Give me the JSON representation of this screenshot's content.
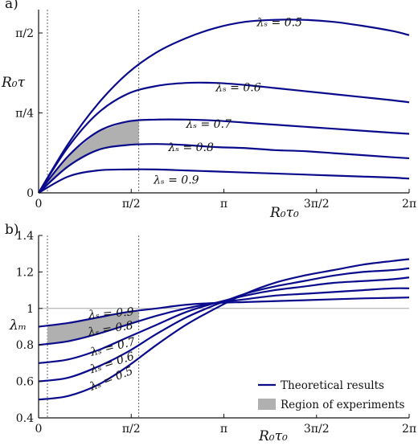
{
  "colors": {
    "curve": "#0a0a8c",
    "region": "#b0b0b0",
    "axis": "#111111",
    "reference": "#999999"
  },
  "chart_data": [
    {
      "panel_label": "a)",
      "type": "line",
      "ylabel": "R_0τ",
      "xlabel": "R_0τ_0",
      "x_ticks": [
        {
          "value": 0,
          "label": "0"
        },
        {
          "value": 1.5708,
          "label": "π/2"
        },
        {
          "value": 3.1416,
          "label": "π"
        },
        {
          "value": 4.7124,
          "label": "3π/2"
        },
        {
          "value": 6.2832,
          "label": "2π"
        }
      ],
      "y_ticks": [
        {
          "value": 0,
          "label": "0"
        },
        {
          "value": 0.7854,
          "label": "π/4"
        },
        {
          "value": 1.5708,
          "label": "π/2"
        }
      ],
      "xlim": [
        0,
        6.2832
      ],
      "ylim": [
        0,
        1.8
      ],
      "vertical_lines": [
        0.15,
        1.7
      ],
      "series": [
        {
          "name": "λs = 0.5",
          "x": [
            0,
            0.5,
            1.0,
            1.5,
            2.0,
            2.5,
            3.0,
            3.5,
            4.0,
            4.5,
            5.0,
            5.5,
            6.0,
            6.2832
          ],
          "y": [
            0,
            0.48,
            0.87,
            1.17,
            1.38,
            1.52,
            1.62,
            1.68,
            1.7,
            1.7,
            1.68,
            1.64,
            1.59,
            1.55
          ]
        },
        {
          "name": "λs = 0.6",
          "x": [
            0,
            0.5,
            1.0,
            1.5,
            2.0,
            2.5,
            3.0,
            3.5,
            4.0,
            4.5,
            5.0,
            5.5,
            6.0,
            6.2832
          ],
          "y": [
            0,
            0.45,
            0.78,
            0.97,
            1.05,
            1.08,
            1.08,
            1.06,
            1.03,
            1.0,
            0.97,
            0.94,
            0.91,
            0.89
          ]
        },
        {
          "name": "λs = 0.7",
          "x": [
            0,
            0.5,
            1.0,
            1.5,
            2.0,
            2.5,
            3.0,
            3.5,
            4.0,
            4.5,
            5.0,
            5.5,
            6.0,
            6.2832
          ],
          "y": [
            0,
            0.36,
            0.6,
            0.7,
            0.72,
            0.72,
            0.71,
            0.69,
            0.67,
            0.65,
            0.63,
            0.61,
            0.59,
            0.58
          ]
        },
        {
          "name": "λs = 0.8",
          "x": [
            0,
            0.5,
            1.0,
            1.5,
            2.0,
            2.5,
            3.0,
            3.5,
            4.0,
            4.5,
            5.0,
            5.5,
            6.0,
            6.2832
          ],
          "y": [
            0,
            0.26,
            0.42,
            0.47,
            0.48,
            0.47,
            0.45,
            0.44,
            0.42,
            0.41,
            0.39,
            0.37,
            0.35,
            0.34
          ]
        },
        {
          "name": "λs = 0.9",
          "x": [
            0,
            0.5,
            1.0,
            1.5,
            2.0,
            2.5,
            3.0,
            3.5,
            4.0,
            4.5,
            5.0,
            5.5,
            6.0,
            6.2832
          ],
          "y": [
            0,
            0.16,
            0.22,
            0.23,
            0.23,
            0.22,
            0.21,
            0.2,
            0.19,
            0.18,
            0.17,
            0.16,
            0.15,
            0.14
          ]
        }
      ],
      "region": {
        "x_from": 0.15,
        "x_to": 1.7,
        "upper": "λs = 0.7",
        "lower": "λs = 0.8"
      },
      "annotations": [
        {
          "text": "λs = 0.5",
          "x": 3.7,
          "y": 1.64
        },
        {
          "text": "λs = 0.6",
          "x": 3.0,
          "y": 1.0
        },
        {
          "text": "λs = 0.7",
          "x": 2.5,
          "y": 0.64
        },
        {
          "text": "λs = 0.8",
          "x": 2.2,
          "y": 0.41
        },
        {
          "text": "λs = 0.9",
          "x": 1.95,
          "y": 0.09
        }
      ]
    },
    {
      "panel_label": "b)",
      "type": "line",
      "ylabel": "λ_m",
      "xlabel": "R_0τ_0",
      "x_ticks": [
        {
          "value": 0,
          "label": "0"
        },
        {
          "value": 1.5708,
          "label": "π/2"
        },
        {
          "value": 3.1416,
          "label": "π"
        },
        {
          "value": 4.7124,
          "label": "3π/2"
        },
        {
          "value": 6.2832,
          "label": "2π"
        }
      ],
      "y_ticks": [
        {
          "value": 0.4,
          "label": "0.4"
        },
        {
          "value": 0.6,
          "label": "0.6"
        },
        {
          "value": 0.8,
          "label": "0.8"
        },
        {
          "value": 1.0,
          "label": "1"
        },
        {
          "value": 1.2,
          "label": "1.2"
        },
        {
          "value": 1.4,
          "label": "1.4"
        }
      ],
      "xlim": [
        0,
        6.2832
      ],
      "ylim": [
        0.4,
        1.4
      ],
      "vertical_lines": [
        0.15,
        1.7
      ],
      "horizontal_line": 1.0,
      "series": [
        {
          "name": "λs = 0.9",
          "x": [
            0,
            0.5,
            1.0,
            1.5,
            2.0,
            2.5,
            3.0,
            3.5,
            4.0,
            4.5,
            5.0,
            5.5,
            6.0,
            6.2832
          ],
          "y": [
            0.9,
            0.92,
            0.95,
            0.98,
            1.0,
            1.02,
            1.03,
            1.035,
            1.04,
            1.045,
            1.05,
            1.055,
            1.058,
            1.06
          ]
        },
        {
          "name": "λs = 0.8",
          "x": [
            0,
            0.5,
            1.0,
            1.5,
            2.0,
            2.5,
            3.0,
            3.5,
            4.0,
            4.5,
            5.0,
            5.5,
            6.0,
            6.2832
          ],
          "y": [
            0.8,
            0.82,
            0.86,
            0.91,
            0.96,
            1.0,
            1.03,
            1.05,
            1.07,
            1.08,
            1.09,
            1.1,
            1.11,
            1.11
          ]
        },
        {
          "name": "λs = 0.7",
          "x": [
            0,
            0.5,
            1.0,
            1.5,
            2.0,
            2.5,
            3.0,
            3.5,
            4.0,
            4.5,
            5.0,
            5.5,
            6.0,
            6.2832
          ],
          "y": [
            0.7,
            0.72,
            0.77,
            0.84,
            0.91,
            0.98,
            1.03,
            1.07,
            1.1,
            1.12,
            1.14,
            1.15,
            1.16,
            1.17
          ]
        },
        {
          "name": "λs = 0.6",
          "x": [
            0,
            0.5,
            1.0,
            1.5,
            2.0,
            2.5,
            3.0,
            3.5,
            4.0,
            4.5,
            5.0,
            5.5,
            6.0,
            6.2832
          ],
          "y": [
            0.6,
            0.62,
            0.68,
            0.76,
            0.86,
            0.95,
            1.02,
            1.08,
            1.12,
            1.15,
            1.18,
            1.2,
            1.21,
            1.22
          ]
        },
        {
          "name": "λs = 0.5",
          "x": [
            0,
            0.5,
            1.0,
            1.5,
            2.0,
            2.5,
            3.0,
            3.5,
            4.0,
            4.5,
            5.0,
            5.5,
            6.0,
            6.2832
          ],
          "y": [
            0.5,
            0.52,
            0.58,
            0.68,
            0.8,
            0.91,
            1.0,
            1.08,
            1.14,
            1.18,
            1.21,
            1.24,
            1.26,
            1.27
          ]
        }
      ],
      "region": {
        "x_from": 0.15,
        "x_to": 1.7,
        "upper": "λs = 0.9",
        "lower": "λs = 0.8"
      },
      "annotations": [
        {
          "text": "λs = 0.9",
          "x": 0.85,
          "y": 0.945,
          "rotate": -4
        },
        {
          "text": "λs = 0.8",
          "x": 0.85,
          "y": 0.85,
          "rotate": -9
        },
        {
          "text": "λs = 0.7",
          "x": 0.9,
          "y": 0.74,
          "rotate": -14
        },
        {
          "text": "λs = 0.6",
          "x": 0.9,
          "y": 0.645,
          "rotate": -18
        },
        {
          "text": "λs = 0.5",
          "x": 0.9,
          "y": 0.55,
          "rotate": -22
        }
      ],
      "legend": {
        "position": "bottom-right",
        "entries": [
          {
            "kind": "line",
            "label": "Theoretical results"
          },
          {
            "kind": "patch",
            "label": "Region of experiments"
          }
        ]
      }
    }
  ]
}
